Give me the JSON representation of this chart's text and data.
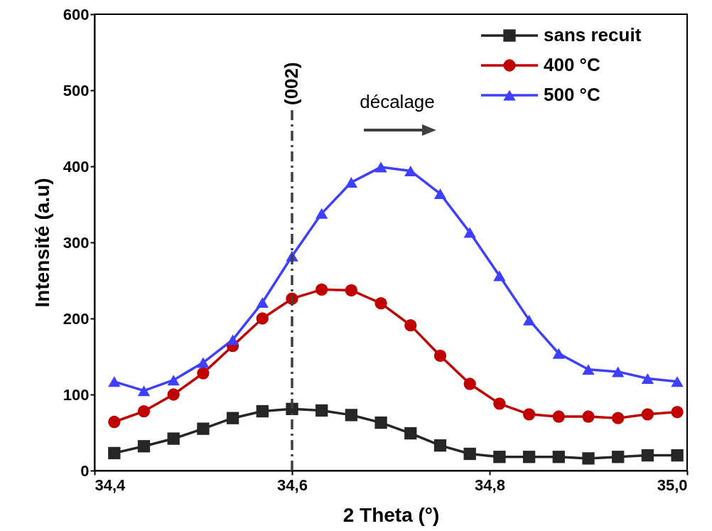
{
  "chart_data": {
    "type": "line",
    "xlabel": "2 Theta (°)",
    "ylabel": "Intensité (a.u)",
    "x": [
      34.42,
      34.45,
      34.48,
      34.51,
      34.54,
      34.57,
      34.6,
      34.63,
      34.66,
      34.69,
      34.72,
      34.75,
      34.78,
      34.81,
      34.84,
      34.87,
      34.9,
      34.93,
      34.96,
      34.99
    ],
    "series": [
      {
        "name": "sans recuit",
        "color": "#262626",
        "marker": "square",
        "values": [
          23,
          32,
          42,
          55,
          69,
          78,
          81,
          79,
          73,
          63,
          49,
          33,
          22,
          18,
          18,
          18,
          16,
          18,
          20,
          20
        ]
      },
      {
        "name": "400 °C",
        "color": "#c00000",
        "marker": "circle",
        "values": [
          64,
          78,
          100,
          128,
          164,
          200,
          226,
          238,
          237,
          220,
          191,
          151,
          114,
          88,
          74,
          71,
          71,
          69,
          74,
          77
        ]
      },
      {
        "name": "500 °C",
        "color": "#3f3fff",
        "marker": "triangle",
        "values": [
          117,
          105,
          119,
          142,
          172,
          221,
          282,
          338,
          379,
          399,
          394,
          364,
          313,
          256,
          198,
          154,
          133,
          130,
          121,
          117
        ]
      }
    ],
    "xlim": [
      34.4,
      35.0
    ],
    "xticks": [
      {
        "value": 34.4,
        "label": "34,4"
      },
      {
        "value": 34.6,
        "label": "34,6"
      },
      {
        "value": 34.8,
        "label": "34,8"
      },
      {
        "value": 35.0,
        "label": "35,0"
      }
    ],
    "ylim": [
      0,
      600
    ],
    "yticks": [
      0,
      100,
      200,
      300,
      400,
      500,
      600
    ],
    "ref_lines": [
      {
        "axis": "x",
        "value": 34.6,
        "color": "#404040",
        "line_style": "dashdot"
      }
    ],
    "annotations": [
      "(002)",
      "décalage"
    ],
    "legend": "top right",
    "grid": false
  }
}
